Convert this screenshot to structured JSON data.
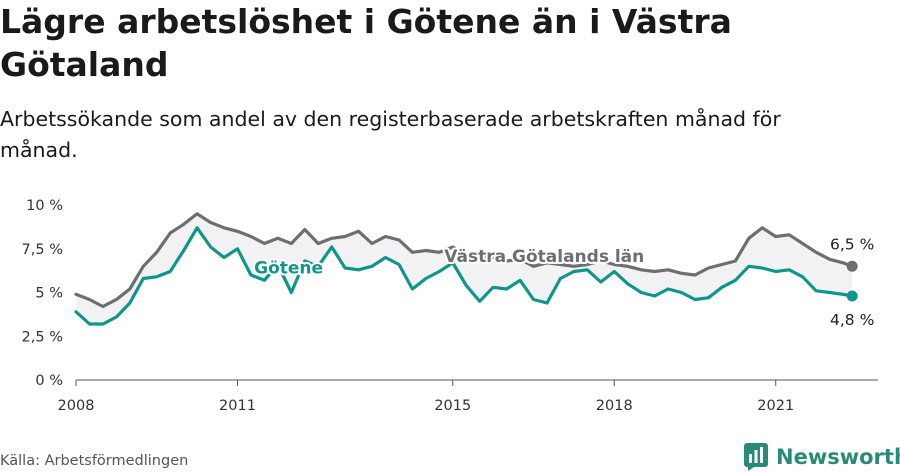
{
  "title": "Lägre arbetslöshet i Götene än i Västra Götaland",
  "subtitle": "Arbetssökande som andel av den registerbaserade arbetskraften månad för månad.",
  "source": "Källa: Arbetsförmedlingen",
  "brand": {
    "name": "Newsworthy",
    "icon": "newsworthy-logo-icon",
    "color": "#2a8a78"
  },
  "chart_data": {
    "type": "line",
    "xlim": [
      2008,
      2022.9
    ],
    "ylim": [
      0,
      10
    ],
    "x_ticks": [
      {
        "value": 2008,
        "label": "2008"
      },
      {
        "value": 2011,
        "label": "2011"
      },
      {
        "value": 2015,
        "label": "2015"
      },
      {
        "value": 2018,
        "label": "2018"
      },
      {
        "value": 2021,
        "label": "2021"
      }
    ],
    "y_ticks": [
      {
        "value": 0,
        "label": "0 %"
      },
      {
        "value": 2.5,
        "label": "2,5 %"
      },
      {
        "value": 5,
        "label": "5 %"
      },
      {
        "value": 7.5,
        "label": "7,5 %"
      },
      {
        "value": 10,
        "label": "10 %"
      }
    ],
    "grid": false,
    "area_between_series": true,
    "series": [
      {
        "name": "Västra Götalands län",
        "color": "#6e6e72",
        "end_label": "6,5 %",
        "x": [
          2008.0,
          2008.25,
          2008.5,
          2008.75,
          2009.0,
          2009.25,
          2009.5,
          2009.75,
          2010.0,
          2010.25,
          2010.5,
          2010.75,
          2011.0,
          2011.25,
          2011.5,
          2011.75,
          2012.0,
          2012.25,
          2012.5,
          2012.75,
          2013.0,
          2013.25,
          2013.5,
          2013.75,
          2014.0,
          2014.25,
          2014.5,
          2014.75,
          2015.0,
          2015.25,
          2015.5,
          2015.75,
          2016.0,
          2016.25,
          2016.5,
          2016.75,
          2017.0,
          2017.25,
          2017.5,
          2017.75,
          2018.0,
          2018.25,
          2018.5,
          2018.75,
          2019.0,
          2019.25,
          2019.5,
          2019.75,
          2020.0,
          2020.25,
          2020.5,
          2020.75,
          2021.0,
          2021.25,
          2021.5,
          2021.75,
          2022.0,
          2022.25,
          2022.42
        ],
        "values": [
          4.9,
          4.6,
          4.2,
          4.6,
          5.2,
          6.5,
          7.3,
          8.4,
          8.9,
          9.5,
          9.0,
          8.7,
          8.5,
          8.2,
          7.8,
          8.1,
          7.8,
          8.6,
          7.8,
          8.1,
          8.2,
          8.5,
          7.8,
          8.2,
          8.0,
          7.3,
          7.4,
          7.3,
          7.6,
          7.1,
          7.0,
          7.0,
          6.8,
          6.9,
          6.5,
          6.7,
          6.6,
          6.5,
          6.6,
          6.8,
          6.6,
          6.5,
          6.3,
          6.2,
          6.3,
          6.1,
          6.0,
          6.4,
          6.6,
          6.8,
          8.1,
          8.7,
          8.2,
          8.3,
          7.8,
          7.3,
          6.9,
          6.7,
          6.5
        ]
      },
      {
        "name": "Götene",
        "color": "#0f9688",
        "end_label": "4,8 %",
        "x": [
          2008.0,
          2008.25,
          2008.5,
          2008.75,
          2009.0,
          2009.25,
          2009.5,
          2009.75,
          2010.0,
          2010.25,
          2010.5,
          2010.75,
          2011.0,
          2011.25,
          2011.5,
          2011.75,
          2012.0,
          2012.25,
          2012.5,
          2012.75,
          2013.0,
          2013.25,
          2013.5,
          2013.75,
          2014.0,
          2014.25,
          2014.5,
          2014.75,
          2015.0,
          2015.25,
          2015.5,
          2015.75,
          2016.0,
          2016.25,
          2016.5,
          2016.75,
          2017.0,
          2017.25,
          2017.5,
          2017.75,
          2018.0,
          2018.25,
          2018.5,
          2018.75,
          2019.0,
          2019.25,
          2019.5,
          2019.75,
          2020.0,
          2020.25,
          2020.5,
          2020.75,
          2021.0,
          2021.25,
          2021.5,
          2021.75,
          2022.0,
          2022.25,
          2022.42
        ],
        "values": [
          3.9,
          3.2,
          3.2,
          3.6,
          4.4,
          5.8,
          5.9,
          6.2,
          7.4,
          8.7,
          7.6,
          7.0,
          7.5,
          6.0,
          5.7,
          6.6,
          5.0,
          6.8,
          6.5,
          7.6,
          6.4,
          6.3,
          6.5,
          7.0,
          6.6,
          5.2,
          5.8,
          6.2,
          6.7,
          5.4,
          4.5,
          5.3,
          5.2,
          5.7,
          4.6,
          4.4,
          5.8,
          6.2,
          6.3,
          5.6,
          6.2,
          5.5,
          5.0,
          4.8,
          5.2,
          5.0,
          4.6,
          4.7,
          5.3,
          5.7,
          6.5,
          6.4,
          6.2,
          6.3,
          5.9,
          5.1,
          5.0,
          4.9,
          4.8
        ]
      }
    ]
  }
}
